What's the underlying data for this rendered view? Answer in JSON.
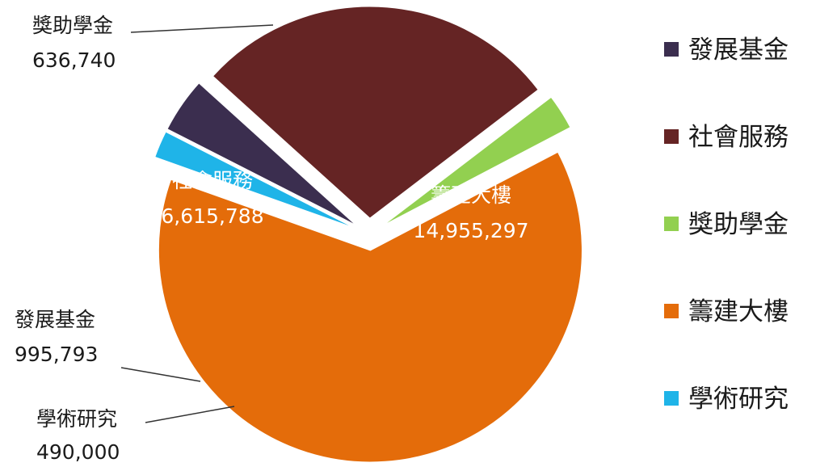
{
  "chart_data": {
    "type": "pie",
    "title": "",
    "slices": [
      {
        "label": "發展基金",
        "value": 995793,
        "display_value": "995,793",
        "color": "#3b2e4f"
      },
      {
        "label": "社會服務",
        "value": 6615788,
        "display_value": "6,615,788",
        "color": "#652424"
      },
      {
        "label": "獎助學金",
        "value": 636740,
        "display_value": "636,740",
        "color": "#92d050"
      },
      {
        "label": "籌建大樓",
        "value": 14955297,
        "display_value": "14,955,297",
        "color": "#e46c0a"
      },
      {
        "label": "學術研究",
        "value": 490000,
        "display_value": "490,000",
        "color": "#1fb4e8"
      }
    ],
    "legend": {
      "position": "right",
      "items": [
        "發展基金",
        "社會服務",
        "獎助學金",
        "籌建大樓",
        "學術研究"
      ]
    },
    "start_angle_deg": 207,
    "direction": "clockwise",
    "exploded": true,
    "data_labels": "category-and-value"
  }
}
